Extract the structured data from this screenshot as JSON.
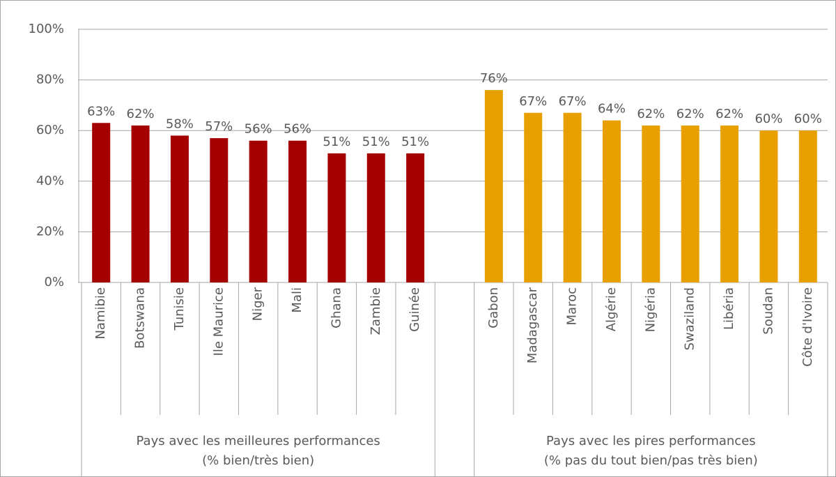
{
  "chart_data": {
    "type": "bar",
    "categories": [
      "Namibie",
      "Botswana",
      "Tunisie",
      "Ile Maurice",
      "Niger",
      "Mali",
      "Ghana",
      "Zambie",
      "Guinée",
      null,
      "Gabon",
      "Madagascar",
      "Maroc",
      "Algérie",
      "Nigéria",
      "Swaziland",
      "Libéria",
      "Soudan",
      "Côte d'Ivoire"
    ],
    "series": [
      {
        "name": "Pays avec les meilleures performances",
        "note": "(% bien/très bien)",
        "color": "#a50000",
        "values": [
          63,
          62,
          58,
          57,
          56,
          56,
          51,
          51,
          51,
          null,
          null,
          null,
          null,
          null,
          null,
          null,
          null,
          null,
          null
        ],
        "value_labels": [
          "63%",
          "62%",
          "58%",
          "57%",
          "56%",
          "56%",
          "51%",
          "51%",
          "51%",
          null,
          null,
          null,
          null,
          null,
          null,
          null,
          null,
          null,
          null
        ]
      },
      {
        "name": "Pays avec les pires performances",
        "note": "(% pas du tout bien/pas très bien)",
        "color": "#e8a000",
        "values": [
          null,
          null,
          null,
          null,
          null,
          null,
          null,
          null,
          null,
          null,
          76,
          67,
          67,
          64,
          62,
          62,
          62,
          60,
          60
        ],
        "value_labels": [
          null,
          null,
          null,
          null,
          null,
          null,
          null,
          null,
          null,
          null,
          "76%",
          "67%",
          "67%",
          "64%",
          "62%",
          "62%",
          "62%",
          "60%",
          "60%"
        ]
      }
    ],
    "ylim": [
      0,
      100
    ],
    "yticks": [
      {
        "value": 0,
        "label": "0%"
      },
      {
        "value": 20,
        "label": "20%"
      },
      {
        "value": 40,
        "label": "40%"
      },
      {
        "value": 60,
        "label": "60%"
      },
      {
        "value": 80,
        "label": "80%"
      },
      {
        "value": 100,
        "label": "100%"
      }
    ],
    "grid": true
  }
}
